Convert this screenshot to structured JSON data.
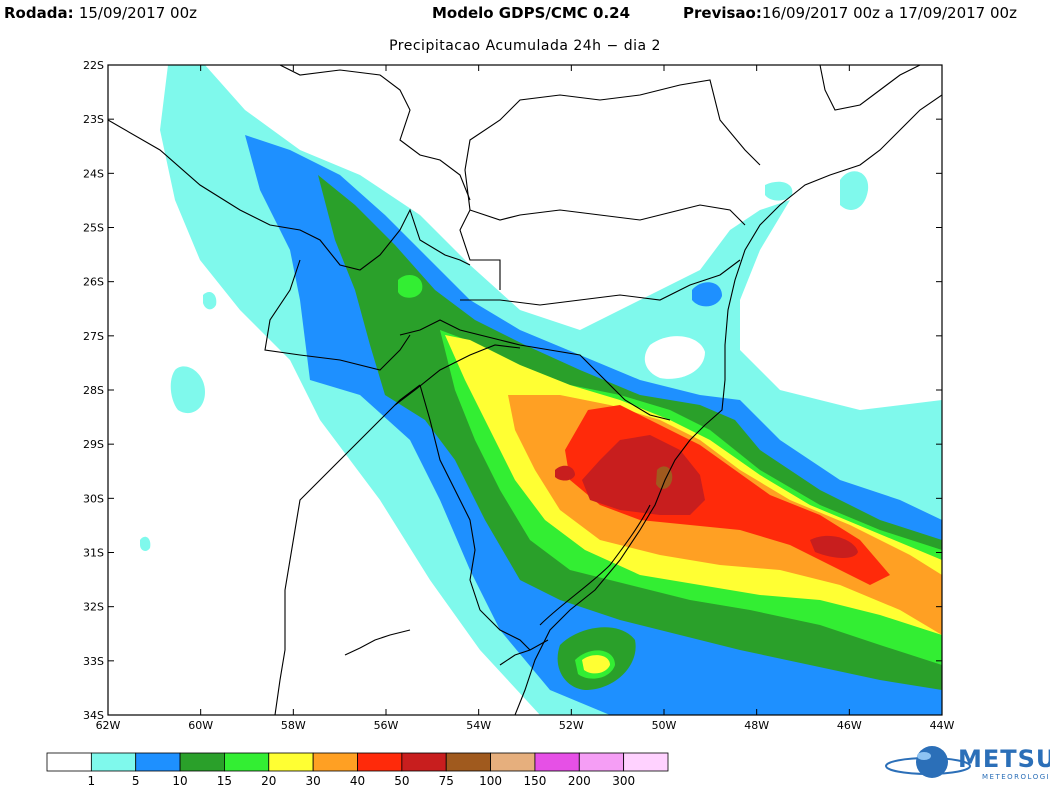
{
  "header": {
    "run_label": "Rodada:",
    "run_value": "15/09/2017 00z",
    "model": "Modelo GDPS/CMC 0.24",
    "forecast_label": "Previsao:",
    "forecast_value": "16/09/2017 00z a 17/09/2017 00z"
  },
  "subtitle": "Precipitacao Acumulada 24h − dia 2",
  "map": {
    "lon_range": [
      -62,
      -44
    ],
    "lat_range": [
      -34,
      -22
    ],
    "lat_ticks": [
      "22S",
      "23S",
      "24S",
      "25S",
      "26S",
      "27S",
      "28S",
      "29S",
      "30S",
      "31S",
      "32S",
      "33S",
      "34S"
    ],
    "lon_ticks": [
      "62W",
      "60W",
      "58W",
      "56W",
      "54W",
      "52W",
      "50W",
      "48W",
      "46W",
      "44W"
    ]
  },
  "legend": {
    "colors": [
      "#ffffff",
      "#7ff9ec",
      "#1e90ff",
      "#2aa02a",
      "#33ee33",
      "#ffff33",
      "#ffa023",
      "#ff2a0a",
      "#c81e1e",
      "#a05a1e",
      "#e6af7d",
      "#e650e6",
      "#f59ef5",
      "#ffd2ff"
    ],
    "labels": [
      "1",
      "5",
      "10",
      "15",
      "20",
      "30",
      "40",
      "50",
      "75",
      "100",
      "150",
      "200",
      "300"
    ]
  },
  "logo": {
    "name": "METSUL",
    "sub": "METEOROLOGIA"
  }
}
